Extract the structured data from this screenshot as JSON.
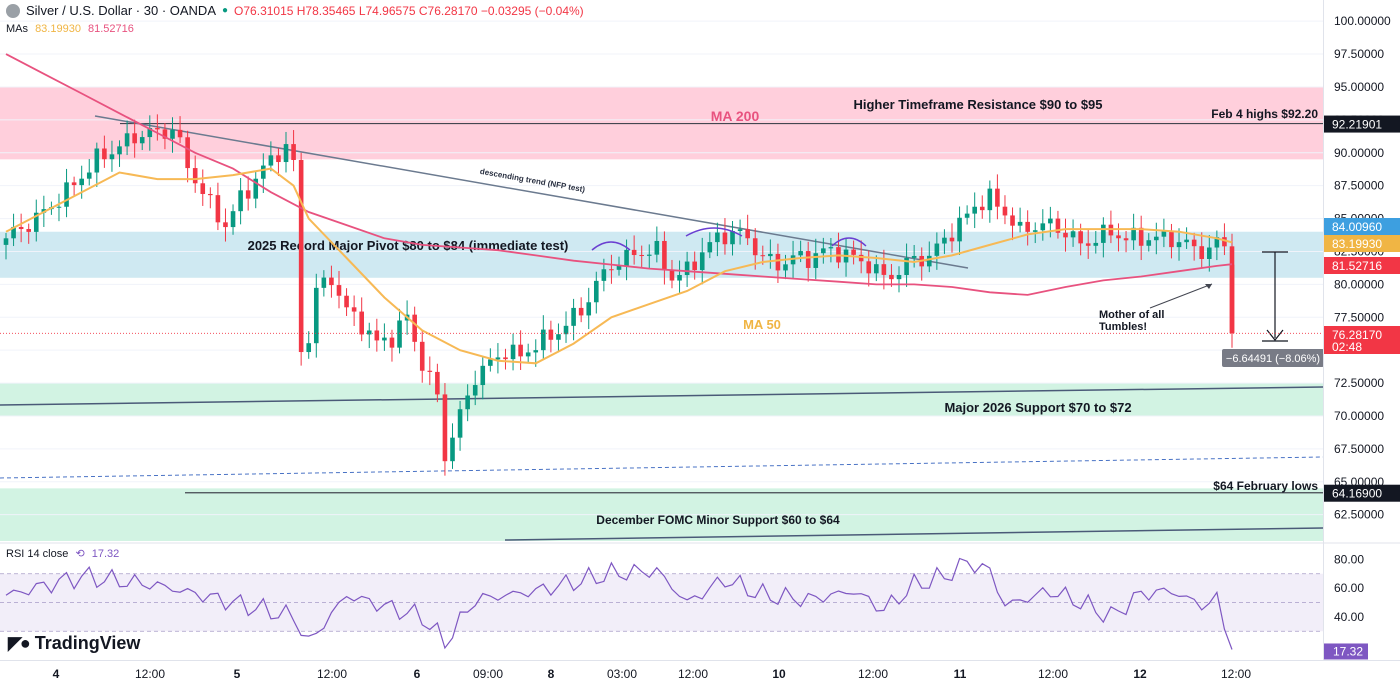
{
  "header": {
    "symbol_title": "Silver / U.S. Dollar · 30 · OANDA",
    "ohlc": "O76.31015 H78.35465 L74.96575 C76.28170 −0.03295 (−0.04%)",
    "mas_label": "MAs",
    "ma50_value": "83.19930",
    "ma200_value": "81.52716",
    "rsi_label": "RSI 14 close",
    "rsi_value": "17.32"
  },
  "branding": {
    "logo_text": "TradingView"
  },
  "colors": {
    "bull": "#089981",
    "bear": "#f23645",
    "ma50": "#f7b955",
    "ma200": "#e8527f",
    "rsi": "#7e57c2",
    "resistance_zone": "#ffcfdc",
    "pivot_zone": "#cfe9f2",
    "support_zone": "#d2f3e3"
  },
  "chart_data": [
    {
      "type": "candlestick",
      "title": "Silver / U.S. Dollar · 30 · OANDA",
      "ylim": [
        60.5,
        101
      ],
      "y_ticks": [
        "100.00000",
        "97.50000",
        "95.00000",
        "92.50000",
        "90.00000",
        "87.50000",
        "85.00000",
        "82.50000",
        "80.00000",
        "77.50000",
        "75.00000",
        "72.50000",
        "70.00000",
        "67.50000",
        "65.00000",
        "62.50000"
      ],
      "x_ticks": [
        {
          "label": "4",
          "bold": true
        },
        {
          "label": "12:00",
          "bold": false
        },
        {
          "label": "5",
          "bold": true
        },
        {
          "label": "12:00",
          "bold": false
        },
        {
          "label": "6",
          "bold": true
        },
        {
          "label": "09:00",
          "bold": false
        },
        {
          "label": "8",
          "bold": true
        },
        {
          "label": "03:00",
          "bold": false
        },
        {
          "label": "12:00",
          "bold": false
        },
        {
          "label": "10",
          "bold": true
        },
        {
          "label": "12:00",
          "bold": false
        },
        {
          "label": "11",
          "bold": true
        },
        {
          "label": "12:00",
          "bold": false
        },
        {
          "label": "12",
          "bold": true
        },
        {
          "label": "12:00",
          "bold": false
        }
      ],
      "close_path": [
        [
          0,
          83.5
        ],
        [
          4,
          85
        ],
        [
          8,
          87
        ],
        [
          12,
          89.5
        ],
        [
          15,
          90.5
        ],
        [
          18,
          91.5
        ],
        [
          21,
          91.5
        ],
        [
          22,
          92
        ],
        [
          24,
          89
        ],
        [
          27,
          86
        ],
        [
          29,
          84.5
        ],
        [
          31,
          86.5
        ],
        [
          33,
          88
        ],
        [
          35,
          89.5
        ],
        [
          37,
          90.5
        ],
        [
          38,
          89
        ],
        [
          39,
          75
        ],
        [
          40,
          76
        ],
        [
          41,
          79.5
        ],
        [
          43,
          80.5
        ],
        [
          45,
          78
        ],
        [
          47,
          77
        ],
        [
          49,
          75.5
        ],
        [
          51,
          76
        ],
        [
          53,
          77.5
        ],
        [
          55,
          74
        ],
        [
          57,
          71.5
        ],
        [
          58,
          67
        ],
        [
          60,
          70
        ],
        [
          62,
          73
        ],
        [
          64,
          74
        ],
        [
          66,
          75
        ],
        [
          68,
          74.5
        ],
        [
          70,
          75.5
        ],
        [
          72,
          76
        ],
        [
          74,
          77
        ],
        [
          76,
          78
        ],
        [
          78,
          80
        ],
        [
          80,
          81.5
        ],
        [
          82,
          82
        ],
        [
          84,
          82.5
        ],
        [
          86,
          82.5
        ],
        [
          88,
          80.5
        ],
        [
          90,
          81
        ],
        [
          92,
          82.5
        ],
        [
          94,
          83.5
        ],
        [
          96,
          84
        ],
        [
          98,
          83.5
        ],
        [
          100,
          82
        ],
        [
          102,
          81.5
        ],
        [
          104,
          82
        ],
        [
          106,
          82
        ],
        [
          108,
          82.5
        ],
        [
          110,
          82.5
        ],
        [
          112,
          82
        ],
        [
          114,
          81.5
        ],
        [
          116,
          80.5
        ],
        [
          118,
          81
        ],
        [
          120,
          82
        ],
        [
          122,
          82
        ],
        [
          124,
          83.5
        ],
        [
          126,
          84.5
        ],
        [
          128,
          86
        ],
        [
          130,
          86.5
        ],
        [
          132,
          85.5
        ],
        [
          134,
          84
        ],
        [
          136,
          84.5
        ],
        [
          138,
          84.5
        ],
        [
          140,
          84
        ],
        [
          142,
          83
        ],
        [
          144,
          83.5
        ],
        [
          146,
          84
        ],
        [
          148,
          83.5
        ],
        [
          150,
          83.5
        ],
        [
          152,
          83.5
        ],
        [
          154,
          83.5
        ],
        [
          156,
          83
        ],
        [
          158,
          82.5
        ],
        [
          160,
          83
        ],
        [
          161,
          83.2
        ],
        [
          162,
          76.3
        ]
      ],
      "ma50": [
        [
          0,
          84
        ],
        [
          5,
          85.5
        ],
        [
          10,
          87
        ],
        [
          15,
          88.5
        ],
        [
          20,
          88
        ],
        [
          25,
          88
        ],
        [
          30,
          88.3
        ],
        [
          35,
          88.8
        ],
        [
          38,
          87.5
        ],
        [
          40,
          85
        ],
        [
          45,
          82
        ],
        [
          50,
          79
        ],
        [
          55,
          76.5
        ],
        [
          60,
          75
        ],
        [
          65,
          74.2
        ],
        [
          70,
          74
        ],
        [
          75,
          75.5
        ],
        [
          80,
          77.5
        ],
        [
          85,
          78.5
        ],
        [
          90,
          79.5
        ],
        [
          95,
          81
        ],
        [
          100,
          81.7
        ],
        [
          105,
          82
        ],
        [
          110,
          82.2
        ],
        [
          115,
          82
        ],
        [
          120,
          81.7
        ],
        [
          125,
          82.2
        ],
        [
          130,
          83
        ],
        [
          135,
          83.8
        ],
        [
          140,
          84.2
        ],
        [
          145,
          84.2
        ],
        [
          150,
          84.2
        ],
        [
          155,
          84
        ],
        [
          160,
          83.5
        ],
        [
          162,
          83.19
        ]
      ],
      "ma200": [
        [
          0,
          97.5
        ],
        [
          5,
          96
        ],
        [
          10,
          94.5
        ],
        [
          15,
          93
        ],
        [
          20,
          91.5
        ],
        [
          25,
          90
        ],
        [
          30,
          88.8
        ],
        [
          35,
          87
        ],
        [
          40,
          85.5
        ],
        [
          45,
          84.5
        ],
        [
          50,
          83.5
        ],
        [
          55,
          83
        ],
        [
          60,
          82.8
        ],
        [
          65,
          82.6
        ],
        [
          70,
          82.2
        ],
        [
          75,
          81.8
        ],
        [
          80,
          81.5
        ],
        [
          85,
          81.2
        ],
        [
          90,
          81
        ],
        [
          95,
          80.8
        ],
        [
          100,
          80.6
        ],
        [
          105,
          80.4
        ],
        [
          110,
          80.2
        ],
        [
          115,
          80
        ],
        [
          120,
          80
        ],
        [
          125,
          79.8
        ],
        [
          130,
          79.4
        ],
        [
          135,
          79.2
        ],
        [
          140,
          79.8
        ],
        [
          145,
          80.3
        ],
        [
          150,
          80.6
        ],
        [
          155,
          81
        ],
        [
          160,
          81.4
        ],
        [
          162,
          81.53
        ]
      ],
      "zones": [
        {
          "label": "Higher Timeframe Resistance $90 to $95",
          "from": 89.5,
          "to": 95,
          "color": "#ffcfdc"
        },
        {
          "label": "2025 Record Major Pivot $80 to $84 (immediate test)",
          "from": 80.5,
          "to": 84,
          "color": "#cfe9f2"
        },
        {
          "label": "Major 2026 Support $70 to $72",
          "from": 70,
          "to": 72.5,
          "color": "#d2f3e3"
        },
        {
          "label": "December FOMC Minor Support $60 to $64",
          "from": 60.5,
          "to": 64.5,
          "color": "#d2f3e3"
        }
      ],
      "levels": [
        {
          "label": "Feb 4 highs $92.20",
          "value": 92.21901,
          "tag": "92.21901"
        },
        {
          "label": "$64 February lows",
          "value": 64.169,
          "tag": "64.16900"
        }
      ],
      "price_tags": [
        {
          "value": 84.0096,
          "text": "84.00960",
          "color": "#3d9fe0"
        },
        {
          "value": 83.1993,
          "text": "83.19930",
          "color": "#f0b544"
        },
        {
          "value": 81.52716,
          "text": "81.52716",
          "color": "#f23645"
        },
        {
          "value": 76.2817,
          "text": "76.28170",
          "color": "#f23645"
        }
      ],
      "countdown": "02:48",
      "annotations": {
        "ma200_label": "MA 200",
        "ma50_label": "MA 50",
        "trend_label": "descending trend (NFP test)",
        "tumble_label_1": "Mother of all",
        "tumble_label_2": "Tumbles!",
        "measure_label": "−6.64491 (−8.06%)"
      }
    },
    {
      "type": "line",
      "title": "RSI 14 close",
      "ylim": [
        10,
        90
      ],
      "y_ticks": [
        "80.00",
        "60.00",
        "40.00"
      ],
      "bands": [
        70,
        50,
        30
      ],
      "current": "17.32",
      "values": [
        [
          0,
          55
        ],
        [
          10,
          68
        ],
        [
          20,
          62
        ],
        [
          30,
          50
        ],
        [
          38,
          40
        ],
        [
          40,
          22
        ],
        [
          45,
          55
        ],
        [
          55,
          40
        ],
        [
          58,
          22
        ],
        [
          62,
          52
        ],
        [
          70,
          58
        ],
        [
          80,
          70
        ],
        [
          86,
          72
        ],
        [
          90,
          50
        ],
        [
          95,
          66
        ],
        [
          100,
          55
        ],
        [
          106,
          52
        ],
        [
          112,
          58
        ],
        [
          116,
          45
        ],
        [
          120,
          62
        ],
        [
          124,
          68
        ],
        [
          127,
          78
        ],
        [
          130,
          72
        ],
        [
          132,
          48
        ],
        [
          138,
          58
        ],
        [
          142,
          50
        ],
        [
          146,
          40
        ],
        [
          150,
          56
        ],
        [
          154,
          58
        ],
        [
          158,
          48
        ],
        [
          160,
          52
        ],
        [
          162,
          18
        ]
      ]
    }
  ]
}
